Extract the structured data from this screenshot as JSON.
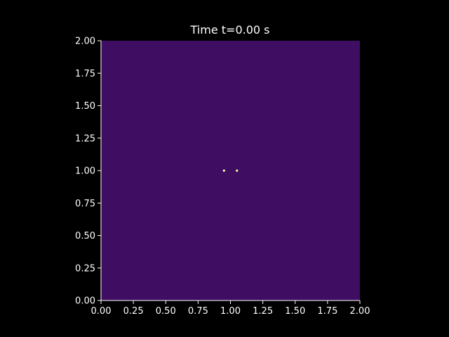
{
  "chart_data": {
    "type": "heatmap",
    "title": "Time t=0.00 s",
    "xlabel": "",
    "ylabel": "",
    "xlim": [
      0.0,
      2.0
    ],
    "ylim": [
      0.0,
      2.0
    ],
    "x_ticks": [
      0.0,
      0.25,
      0.5,
      0.75,
      1.0,
      1.25,
      1.5,
      1.75,
      2.0
    ],
    "y_ticks": [
      0.0,
      0.25,
      0.5,
      0.75,
      1.0,
      1.25,
      1.5,
      1.75,
      2.0
    ],
    "x_tick_labels": [
      "0.00",
      "0.25",
      "0.50",
      "0.75",
      "1.00",
      "1.25",
      "1.50",
      "1.75",
      "2.00"
    ],
    "y_tick_labels": [
      "0.00",
      "0.25",
      "0.50",
      "0.75",
      "1.00",
      "1.25",
      "1.50",
      "1.75",
      "2.00"
    ],
    "background_value_color": "#3f0d62",
    "peaks": [
      {
        "x": 0.95,
        "y": 1.0,
        "color": "#fcffa4"
      },
      {
        "x": 1.05,
        "y": 1.0,
        "color": "#fcffa4"
      }
    ],
    "grid": false,
    "colors": {
      "figure_background": "#000000",
      "text": "#ffffff",
      "axis": "#ffffff"
    }
  }
}
